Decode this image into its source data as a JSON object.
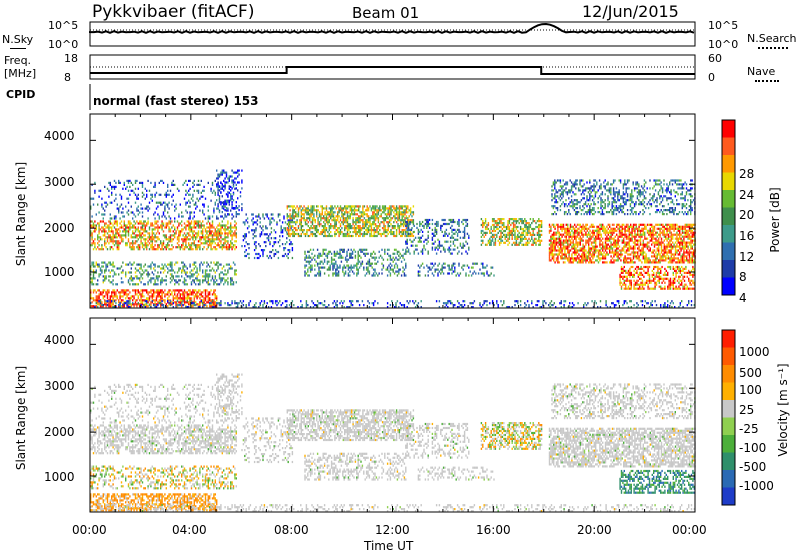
{
  "header": {
    "station": "Pykkvibaer (fitACF)",
    "beam": "Beam 01",
    "date": "12/Jun/2015"
  },
  "info_panels": {
    "nsky_label": "N.Sky",
    "nsky_ticks": [
      "10^5",
      "10^0"
    ],
    "nsearch_label": "N.Search",
    "nsearch_ticks": [
      "10^5",
      "10^0"
    ],
    "freq_label_1": "Freq.",
    "freq_label_2": "[MHz]",
    "freq_ticks": [
      "18",
      "8"
    ],
    "nave_label": "Nave",
    "nave_ticks": [
      "60",
      "0"
    ],
    "cpid_label": "CPID",
    "cpid_value": "normal (fast stereo) 153"
  },
  "chart_data": [
    {
      "type": "heatmap",
      "name": "power",
      "ylabel": "Slant Range [km]",
      "ylim": [
        180,
        4600
      ],
      "yticks": [
        "4000",
        "3000",
        "2000",
        "1000"
      ],
      "xlim_hours": [
        0,
        24
      ],
      "colorbar_label": "Power [dB]",
      "colorbar_ticks": [
        "28",
        "24",
        "20",
        "16",
        "12",
        "8",
        "4"
      ],
      "colorbar_colors": [
        "#0000ff",
        "#1e3ca8",
        "#2f6fb0",
        "#3d9b8a",
        "#3f8f4c",
        "#66bb33",
        "#e8d800",
        "#ff9900",
        "#ff5a1e",
        "#ff0000"
      ]
    },
    {
      "type": "heatmap",
      "name": "velocity",
      "xlabel": "Time UT",
      "ylabel": "Slant Range [km]",
      "ylim": [
        180,
        4600
      ],
      "yticks": [
        "4000",
        "3000",
        "2000",
        "1000"
      ],
      "xlim_hours": [
        0,
        24
      ],
      "xticks": [
        "00:00",
        "04:00",
        "08:00",
        "12:00",
        "16:00",
        "20:00",
        "00:00"
      ],
      "colorbar_label": "Velocity [m s⁻¹]",
      "colorbar_ticks": [
        "1000",
        "500",
        "100",
        "25",
        "-25",
        "-100",
        "-500",
        "-1000"
      ],
      "colorbar_colors": [
        "#1e3cc8",
        "#2a6ab4",
        "#2f8f6b",
        "#4caf3a",
        "#8fd050",
        "#c8c8c8",
        "#ffb000",
        "#ff8c00",
        "#ff5a00",
        "#ff1e00"
      ]
    }
  ]
}
